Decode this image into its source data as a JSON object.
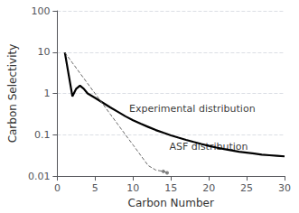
{
  "chart_data": {
    "type": "line",
    "xlabel": "Carbon Number",
    "ylabel": "Carbon Selectivity",
    "log": "y",
    "grid": true,
    "xlim": [
      0,
      30
    ],
    "xticks": [
      0,
      5,
      10,
      15,
      20,
      25,
      30
    ],
    "ylim": [
      0.01,
      100
    ],
    "yticks": [
      0.01,
      0.1,
      1,
      10,
      100
    ],
    "series": [
      {
        "type": "line",
        "color": "#000000",
        "line_style": "solid",
        "marker": "none",
        "x": [
          1,
          2,
          2.5,
          3,
          3.5,
          4,
          5,
          6,
          7,
          8,
          9,
          10,
          11,
          12,
          13,
          14,
          15,
          16,
          17,
          18,
          19,
          20,
          21,
          22,
          23,
          24,
          25,
          26,
          27,
          28,
          29,
          30
        ],
        "values": [
          9.8,
          0.85,
          1.3,
          1.55,
          1.3,
          1.0,
          0.78,
          0.6,
          0.46,
          0.36,
          0.28,
          0.225,
          0.185,
          0.155,
          0.13,
          0.112,
          0.097,
          0.085,
          0.075,
          0.067,
          0.06,
          0.054,
          0.049,
          0.045,
          0.042,
          0.039,
          0.037,
          0.035,
          0.033,
          0.032,
          0.031,
          0.03
        ]
      },
      {
        "type": "line",
        "color": "#666666",
        "line_style": "dashed",
        "marker": "none",
        "x": [
          1,
          2,
          3,
          4,
          5,
          6,
          7,
          8,
          9,
          10,
          11,
          12,
          13,
          14,
          14.5
        ],
        "values": [
          9.8,
          5.5,
          3.1,
          1.75,
          0.99,
          0.56,
          0.315,
          0.178,
          0.1,
          0.057,
          0.032,
          0.018,
          0.014,
          0.013,
          0.012
        ]
      },
      {
        "type": "scatter",
        "color": "#666666",
        "marker": "circle",
        "x": [
          14,
          14.5
        ],
        "values": [
          0.013,
          0.012
        ]
      }
    ],
    "annotations": [
      {
        "text": "Experimental distribution",
        "x": 9.5,
        "y": 0.32,
        "color": "#000000"
      },
      {
        "text": "ASF distribution",
        "x": 14.8,
        "y": 0.038,
        "color": "#000000"
      }
    ]
  }
}
